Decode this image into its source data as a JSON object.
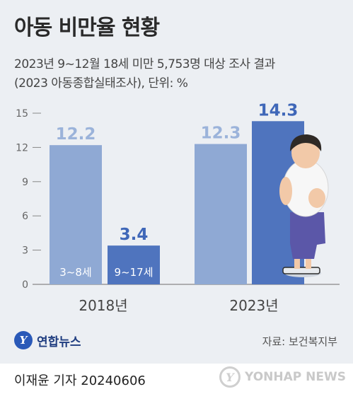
{
  "header": {
    "title": "아동 비만율 현황",
    "subtitle_line1": "2023년 9~12월 18세 미만 5,753명 대상 조사 결과",
    "subtitle_line2": "(2023 아동종합실태조사), 단위: %"
  },
  "chart_data": {
    "type": "bar",
    "categories": [
      "2018년",
      "2023년"
    ],
    "series": [
      {
        "name": "3~8세",
        "values": [
          12.2,
          12.3
        ]
      },
      {
        "name": "9~17세",
        "values": [
          3.4,
          14.3
        ]
      }
    ],
    "ylim": [
      0,
      15
    ],
    "yticks": [
      0,
      3,
      6,
      9,
      12,
      15
    ],
    "grid": false,
    "colors": {
      "series1": "#8fa9d4",
      "series2": "#4f74be",
      "label1": "#9bb3da",
      "label2": "#3f67b8",
      "axis": "#888888"
    }
  },
  "footer": {
    "logo_text": "연합뉴스",
    "source": "자료: 보건복지부",
    "reporter": "이재윤 기자  20240606",
    "watermark": "YONHAP NEWS"
  }
}
